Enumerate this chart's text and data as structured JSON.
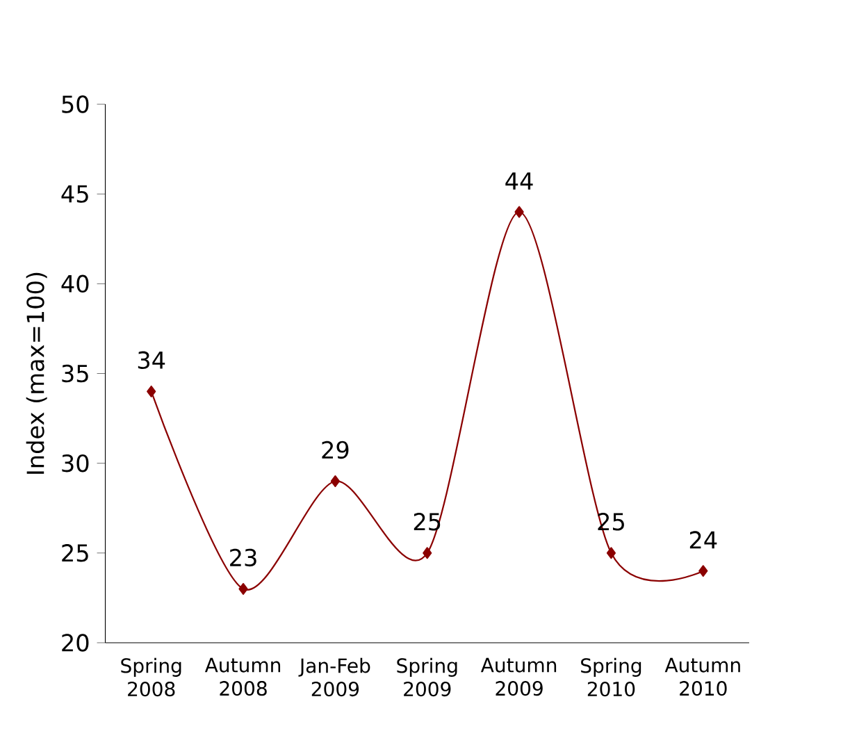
{
  "chart_data": {
    "type": "line",
    "ylabel": "Index (max=100)",
    "categories": [
      "Spring 2008",
      "Autumn 2008",
      "Jan-Feb 2009",
      "Spring 2009",
      "Autumn 2009",
      "Spring 2010",
      "Autumn 2010"
    ],
    "values": [
      34,
      23,
      29,
      25,
      44,
      25,
      24
    ],
    "color": "#8b0000",
    "marker": "diamond",
    "line_style": "solid",
    "data_labels": true,
    "grid": false,
    "ylim": [
      20,
      50
    ],
    "yticks": [
      20,
      25,
      30,
      35,
      40,
      45,
      50
    ]
  }
}
